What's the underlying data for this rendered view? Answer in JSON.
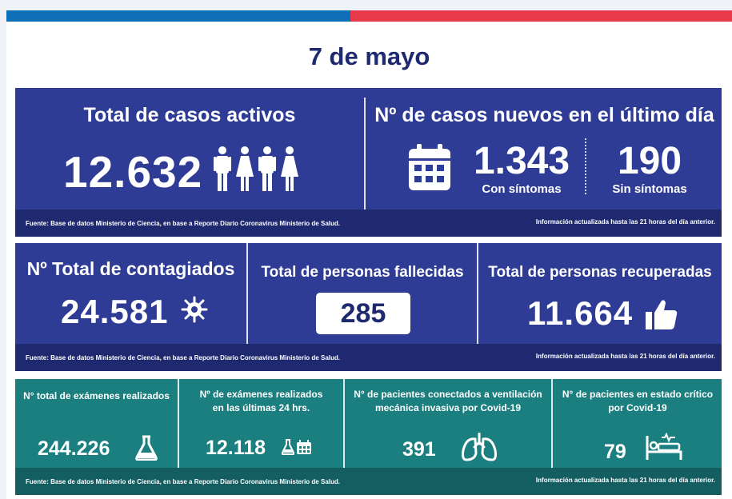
{
  "colors": {
    "navy_panel": "#2f3c96",
    "navy_footer": "#1e2970",
    "teal_panel": "#1b7f80",
    "teal_footer": "#145d61",
    "title_color": "#1e2970",
    "bar_blue": "#0d6fb8",
    "bar_red": "#e8394a"
  },
  "title": "7 de mayo",
  "section1": {
    "active_heading": "Total de casos activos",
    "active_value": "12.632",
    "new_heading": "Nº de casos nuevos en el último día",
    "symptomatic_value": "1.343",
    "symptomatic_label": "Con síntomas",
    "asymptomatic_value": "190",
    "asymptomatic_label": "Sin síntomas",
    "footer_source": "Fuente: Base de datos Ministerio de Ciencia, en base a Reporte Diario Coronavirus Ministerio de Salud.",
    "footer_updated": "Información actualizada hasta las 21 horas  del día anterior.",
    "icons": [
      "man-icon",
      "woman-icon",
      "man-icon",
      "woman-icon",
      "calendar-icon"
    ]
  },
  "section2": {
    "infected_heading": "Nº Total de contagiados",
    "infected_value": "24.581",
    "deaths_heading": "Total de personas fallecidas",
    "deaths_value": "285",
    "recovered_heading": "Total de personas recuperadas",
    "recovered_value": "11.664",
    "footer_source": "Fuente: Base de datos Ministerio de Ciencia, en base a Reporte Diario Coronavirus Ministerio de Salud.",
    "footer_updated": "Información actualizada hasta las 21 horas  del día anterior.",
    "icons": [
      "virus-icon",
      "thumbs-up-icon"
    ]
  },
  "section3": {
    "exams_total_heading": "N° total de exámenes realizados",
    "exams_total_value": "244.226",
    "exams_24h_heading_1": "Nº de exámenes realizados",
    "exams_24h_heading_2": "en las últimas 24 hrs.",
    "exams_24h_value": "12.118",
    "ventilation_heading_1": "N° de pacientes conectados a ventilación",
    "ventilation_heading_2": "mecánica invasiva por Covid-19",
    "ventilation_value": "391",
    "critical_heading_1": "N° de pacientes en estado crítico",
    "critical_heading_2": "por Covid-19",
    "critical_value": "79",
    "footer_source": "Fuente: Base de datos Ministerio de Ciencia, en base a Reporte Diario Coronavirus Ministerio de Salud.",
    "footer_updated": "Información actualizada hasta las 21 horas  del día anterior.",
    "icons": [
      "flask-icon",
      "flask-icon",
      "calendar-icon",
      "lungs-icon",
      "hospital-bed-icon"
    ]
  }
}
